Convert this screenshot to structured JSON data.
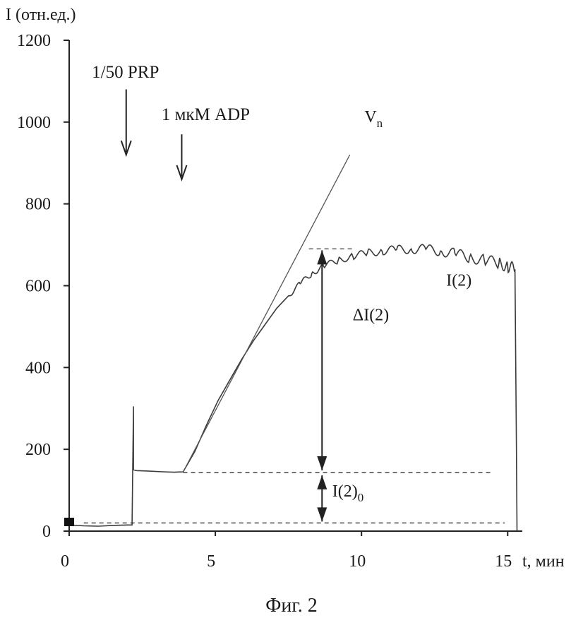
{
  "chart_data": {
    "type": "line",
    "ylabel": "I (отн.ед.)",
    "xlabel": "t, мин",
    "xlim": [
      0,
      15.5
    ],
    "ylim": [
      0,
      1200
    ],
    "xticks": [
      "0",
      "5",
      "10",
      "15"
    ],
    "xtick_values": [
      0,
      5,
      10,
      15
    ],
    "yticks": [
      "0",
      "200",
      "400",
      "600",
      "800",
      "1000",
      "1200"
    ],
    "ytick_values": [
      0,
      200,
      400,
      600,
      800,
      1000,
      1200
    ],
    "grid": false,
    "series": [
      {
        "name": "I(2)",
        "x": [
          0,
          0.5,
          1.0,
          1.5,
          2.0,
          2.15,
          2.2,
          2.2,
          2.3,
          2.7,
          3.2,
          3.6,
          3.9,
          4.3,
          4.7,
          5.1,
          5.5,
          5.9,
          6.3,
          6.7,
          7.1,
          7.5,
          7.9,
          8.3,
          8.7,
          9.2,
          9.7,
          10.2,
          10.7,
          11.2,
          11.7,
          12.2,
          12.7,
          13.2,
          13.7,
          14.2,
          14.7,
          15.0,
          15.25,
          15.3,
          15.32
        ],
        "y": [
          15,
          13,
          12,
          14,
          15,
          15,
          305,
          150,
          148,
          147,
          145,
          144,
          145,
          195,
          260,
          320,
          370,
          420,
          465,
          505,
          545,
          575,
          605,
          630,
          648,
          662,
          672,
          680,
          685,
          688,
          690,
          689,
          685,
          678,
          670,
          662,
          655,
          648,
          640,
          200,
          0
        ]
      },
      {
        "name": "Vn",
        "x": [
          3.9,
          9.6
        ],
        "y": [
          145,
          920
        ]
      }
    ],
    "reference_lines": [
      {
        "y": 20,
        "x": [
          0.5,
          14.9
        ]
      },
      {
        "y": 143,
        "x": [
          3.9,
          14.5
        ]
      },
      {
        "y": 690,
        "x": [
          8.2,
          9.7
        ]
      }
    ],
    "double_arrows": [
      {
        "x": 8.65,
        "y": [
          145,
          690
        ],
        "label": "ΔI(2)"
      },
      {
        "x": 8.65,
        "y": [
          20,
          140
        ],
        "label": "I(2)₀"
      }
    ],
    "event_arrows": [
      {
        "label": "1/50 PRP",
        "x": 1.95,
        "y_from": 1080,
        "y_to": 920
      },
      {
        "label": "1 мкМ ADP",
        "x": 3.85,
        "y_from": 970,
        "y_to": 860
      }
    ],
    "annotations": [
      {
        "text": "V",
        "subscript": "n",
        "x": 10.1,
        "y": 1000
      },
      {
        "text": "I(2)",
        "x": 12.9,
        "y": 600
      },
      {
        "text": "ΔI(2)",
        "x": 9.7,
        "y": 515
      },
      {
        "text": "I(2)",
        "subscript": "0",
        "x": 9.0,
        "y": 85
      }
    ],
    "caption": "Фиг. 2"
  }
}
